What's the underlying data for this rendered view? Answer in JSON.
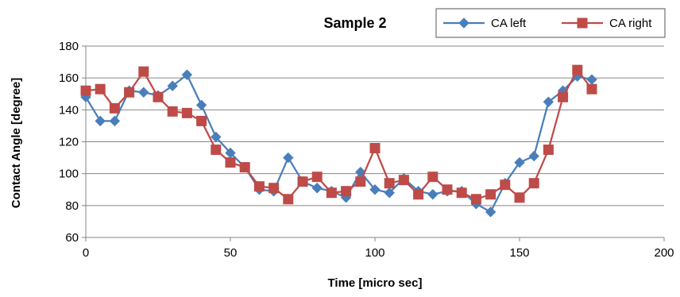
{
  "chart_data": {
    "type": "line",
    "title": "Sample 2",
    "xlabel": "Time [micro sec]",
    "ylabel": "Contact Angle [degree]",
    "xlim": [
      0,
      200
    ],
    "ylim": [
      60,
      180
    ],
    "xticks": [
      0,
      50,
      100,
      150,
      200
    ],
    "yticks": [
      60,
      80,
      100,
      120,
      140,
      160,
      180
    ],
    "grid": "horizontal",
    "legend_position": "top-right",
    "series": [
      {
        "name": "CA left",
        "color": "#4a7ebb",
        "marker": "diamond",
        "x": [
          0,
          5,
          10,
          15,
          20,
          25,
          30,
          35,
          40,
          45,
          50,
          55,
          60,
          65,
          70,
          75,
          80,
          85,
          90,
          95,
          100,
          105,
          110,
          115,
          120,
          125,
          130,
          135,
          140,
          145,
          150,
          155,
          160,
          165,
          170,
          175
        ],
        "values": [
          148,
          133,
          133,
          152,
          151,
          149,
          155,
          162,
          143,
          123,
          113,
          104,
          90,
          89,
          110,
          95,
          91,
          89,
          85,
          101,
          90,
          88,
          97,
          89,
          87,
          89,
          89,
          81,
          76,
          94,
          107,
          111,
          145,
          152,
          161,
          159
        ]
      },
      {
        "name": "CA right",
        "color": "#be4b48",
        "marker": "square",
        "x": [
          0,
          5,
          10,
          15,
          20,
          25,
          30,
          35,
          40,
          45,
          50,
          55,
          60,
          65,
          70,
          75,
          80,
          85,
          90,
          95,
          100,
          105,
          110,
          115,
          120,
          125,
          130,
          135,
          140,
          145,
          150,
          155,
          160,
          165,
          170,
          175
        ],
        "values": [
          152,
          153,
          141,
          151,
          164,
          148,
          139,
          138,
          133,
          115,
          107,
          104,
          92,
          91,
          84,
          95,
          98,
          88,
          89,
          95,
          116,
          94,
          96,
          87,
          98,
          90,
          88,
          84,
          87,
          93,
          85,
          94,
          115,
          148,
          165,
          153
        ]
      }
    ]
  }
}
